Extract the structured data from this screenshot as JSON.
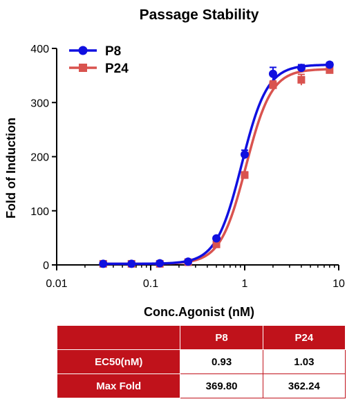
{
  "chart_data": {
    "type": "line",
    "title": "Passage Stability",
    "xlabel": "Conc.Agonist (nM)",
    "ylabel": "Fold of Induction",
    "x_scale": "log",
    "xlim": [
      0.01,
      10
    ],
    "ylim": [
      0,
      400
    ],
    "x_ticks": [
      "0.01",
      "0.1",
      "1",
      "10"
    ],
    "y_ticks": [
      "0",
      "100",
      "200",
      "300",
      "400"
    ],
    "legend_position": "top-left",
    "series": [
      {
        "name": "P8",
        "color": "#1010e0",
        "marker": "circle",
        "x": [
          0.03125,
          0.0625,
          0.125,
          0.25,
          0.5,
          1,
          2,
          4,
          8
        ],
        "y": [
          2,
          2,
          3,
          6,
          49,
          204,
          353,
          364,
          370
        ],
        "err": [
          2,
          2,
          2,
          3,
          3,
          8,
          12,
          6,
          4
        ],
        "fit": {
          "bottom": 2,
          "top": 370,
          "ec50": 0.93,
          "hill": 3.2
        }
      },
      {
        "name": "P24",
        "color": "#d9534f",
        "marker": "square",
        "x": [
          0.03125,
          0.0625,
          0.125,
          0.25,
          0.5,
          1,
          2,
          4,
          8
        ],
        "y": [
          2,
          2,
          2,
          5,
          38,
          166,
          332,
          342,
          360
        ],
        "err": [
          2,
          2,
          2,
          2,
          4,
          6,
          8,
          10,
          5
        ],
        "fit": {
          "bottom": 2,
          "top": 362,
          "ec50": 1.03,
          "hill": 3.2
        }
      }
    ]
  },
  "table": {
    "headers": [
      "",
      "P8",
      "P24"
    ],
    "rows": [
      {
        "label": "EC50(nM)",
        "p8": "0.93",
        "p24": "1.03"
      },
      {
        "label": "Max Fold",
        "p8": "369.80",
        "p24": "362.24"
      }
    ]
  }
}
